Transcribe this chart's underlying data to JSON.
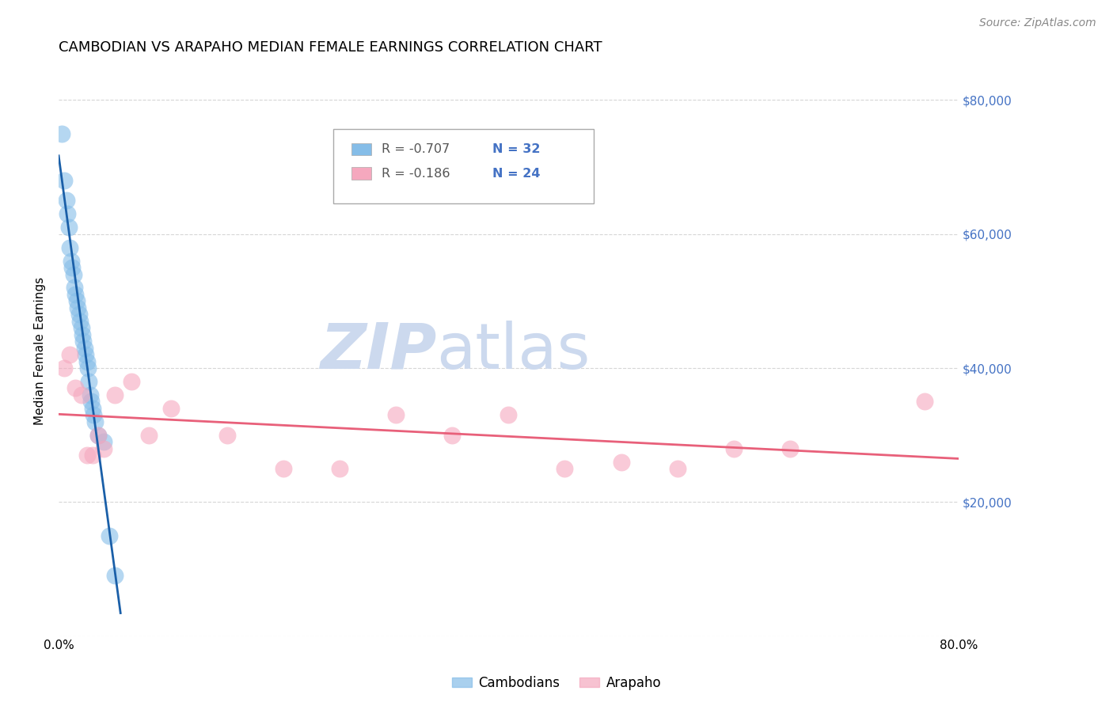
{
  "title": "CAMBODIAN VS ARAPAHO MEDIAN FEMALE EARNINGS CORRELATION CHART",
  "source": "Source: ZipAtlas.com",
  "ylabel": "Median Female Earnings",
  "xlabel": "",
  "xlim": [
    0.0,
    80.0
  ],
  "ylim": [
    0,
    85000
  ],
  "yticks": [
    0,
    20000,
    40000,
    60000,
    80000
  ],
  "ytick_labels": [
    "",
    "$20,000",
    "$40,000",
    "$60,000",
    "$80,000"
  ],
  "xticks": [
    0,
    10,
    20,
    30,
    40,
    50,
    60,
    70,
    80
  ],
  "xtick_labels": [
    "0.0%",
    "",
    "",
    "",
    "",
    "",
    "",
    "",
    "80.0%"
  ],
  "cambodian_color": "#85bde8",
  "arapaho_color": "#f5a8be",
  "cambodian_line_color": "#1a5fa8",
  "arapaho_line_color": "#e8607a",
  "background_color": "#ffffff",
  "grid_color": "#cccccc",
  "watermark_zip": "ZIP",
  "watermark_atlas": "atlas",
  "watermark_color": "#ccd9ee",
  "legend_R_cambodian": "R = -0.707",
  "legend_N_cambodian": "N = 32",
  "legend_R_arapaho": "R = -0.186",
  "legend_N_arapaho": "N = 24",
  "legend_label_cambodian": "Cambodians",
  "legend_label_arapaho": "Arapaho",
  "title_fontsize": 13,
  "axis_label_fontsize": 11,
  "tick_fontsize": 11,
  "right_tick_color": "#4472c4",
  "cambodian_x": [
    0.3,
    0.5,
    0.7,
    0.8,
    0.9,
    1.0,
    1.1,
    1.2,
    1.3,
    1.4,
    1.5,
    1.6,
    1.7,
    1.8,
    1.9,
    2.0,
    2.1,
    2.2,
    2.3,
    2.4,
    2.5,
    2.6,
    2.7,
    2.8,
    2.9,
    3.0,
    3.1,
    3.2,
    3.5,
    4.0,
    4.5,
    5.0
  ],
  "cambodian_y": [
    75000,
    68000,
    65000,
    63000,
    61000,
    58000,
    56000,
    55000,
    54000,
    52000,
    51000,
    50000,
    49000,
    48000,
    47000,
    46000,
    45000,
    44000,
    43000,
    42000,
    41000,
    40000,
    38000,
    36000,
    35000,
    34000,
    33000,
    32000,
    30000,
    29000,
    15000,
    9000
  ],
  "arapaho_x": [
    0.5,
    1.0,
    1.5,
    2.0,
    2.5,
    3.0,
    3.5,
    4.0,
    5.0,
    6.5,
    8.0,
    10.0,
    15.0,
    20.0,
    25.0,
    30.0,
    35.0,
    40.0,
    45.0,
    50.0,
    55.0,
    60.0,
    65.0,
    77.0
  ],
  "arapaho_y": [
    40000,
    42000,
    37000,
    36000,
    27000,
    27000,
    30000,
    28000,
    36000,
    38000,
    30000,
    34000,
    30000,
    25000,
    25000,
    33000,
    30000,
    33000,
    25000,
    26000,
    25000,
    28000,
    28000,
    35000
  ],
  "dot_size": 250
}
